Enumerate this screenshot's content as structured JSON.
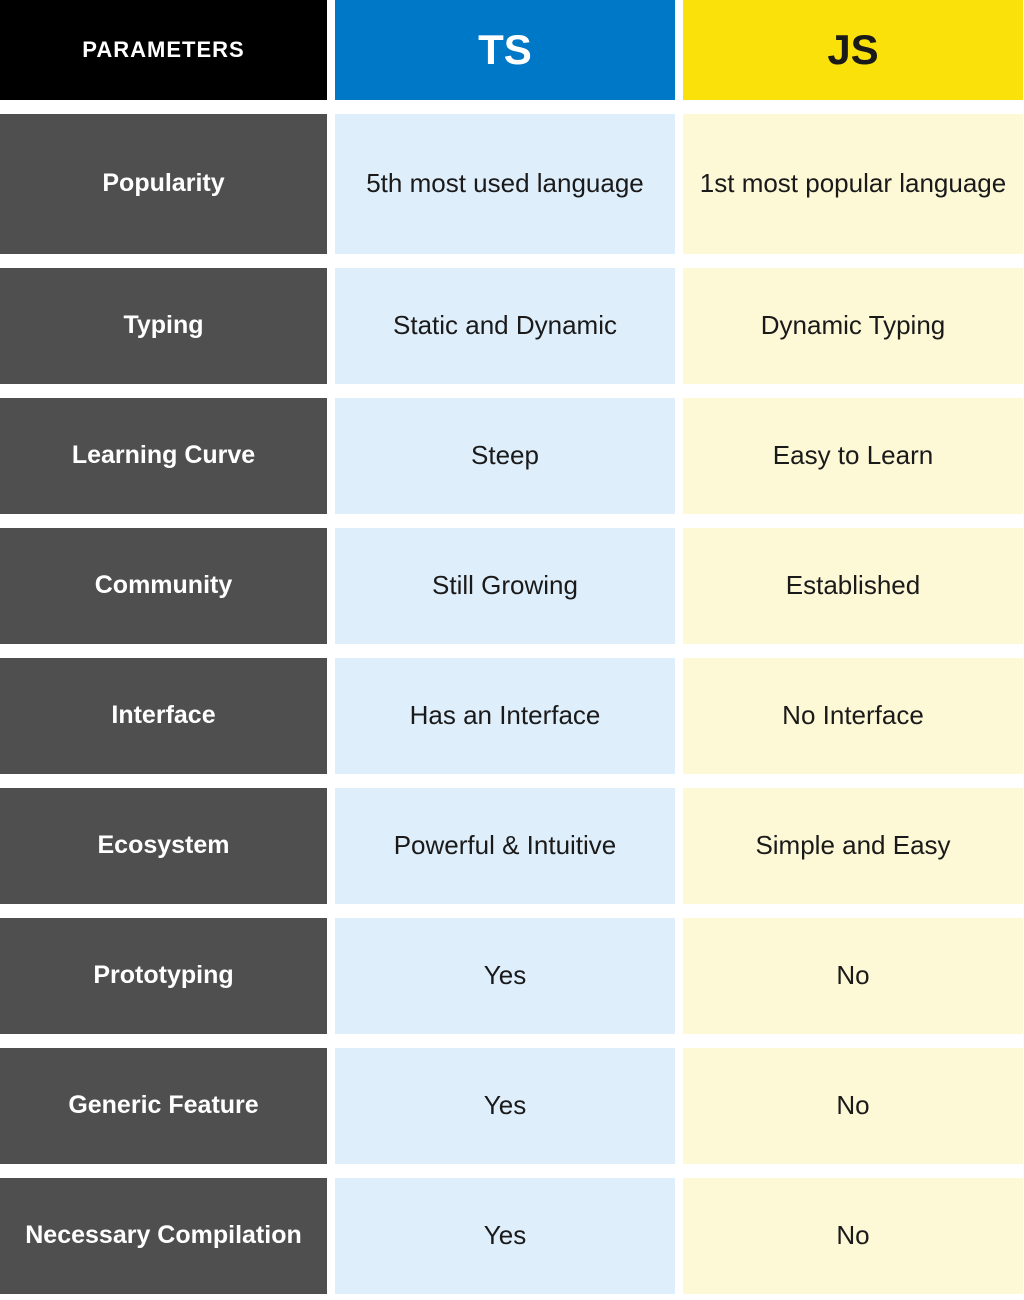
{
  "colors": {
    "header_params_bg": "#000000",
    "header_params_fg": "#ffffff",
    "header_ts_bg": "#0078c8",
    "header_ts_fg": "#ffffff",
    "header_js_bg": "#f9e109",
    "header_js_fg": "#1a1a1a",
    "param_bg": "#4f4f4f",
    "param_fg": "#ffffff",
    "ts_cell_bg": "#dfeefb",
    "ts_cell_fg": "#1a1a1a",
    "js_cell_bg": "#fdf8d5",
    "js_cell_fg": "#1a1a1a"
  },
  "headers": {
    "params": "PARAMETERS",
    "ts": "TS",
    "js": "JS"
  },
  "rows": [
    {
      "param": "Popularity",
      "ts": "5th most used language",
      "js": "1st most popular language"
    },
    {
      "param": "Typing",
      "ts": "Static and Dynamic",
      "js": "Dynamic Typing"
    },
    {
      "param": "Learning Curve",
      "ts": "Steep",
      "js": "Easy to Learn"
    },
    {
      "param": "Community",
      "ts": "Still Growing",
      "js": "Established"
    },
    {
      "param": "Interface",
      "ts": "Has an Interface",
      "js": "No Interface"
    },
    {
      "param": "Ecosystem",
      "ts": "Powerful & Intuitive",
      "js": "Simple and Easy"
    },
    {
      "param": "Prototyping",
      "ts": "Yes",
      "js": "No"
    },
    {
      "param": "Generic Feature",
      "ts": "Yes",
      "js": "No"
    },
    {
      "param": "Necessary Compilation",
      "ts": "Yes",
      "js": "No"
    }
  ]
}
